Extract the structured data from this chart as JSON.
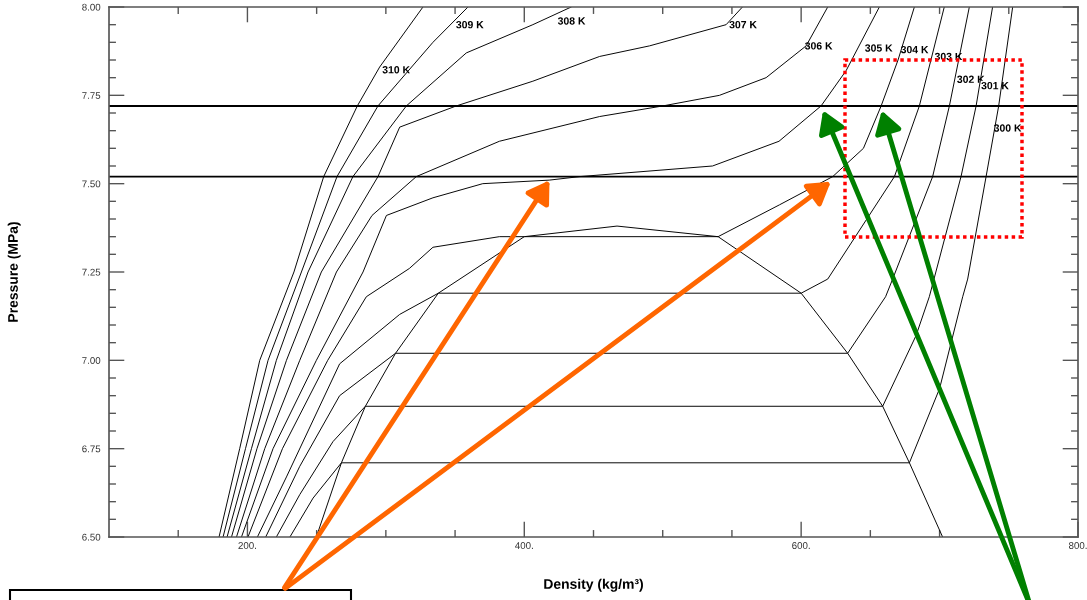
{
  "chart_data": {
    "type": "line",
    "xlabel": "Density (kg/m³)",
    "ylabel": "Pressure (MPa)",
    "xlim": [
      100,
      800
    ],
    "ylim": [
      6.5,
      8.0
    ],
    "xticks": [
      {
        "value": 150,
        "label": null
      },
      {
        "value": 200,
        "label": "200."
      },
      {
        "value": 250,
        "label": null
      },
      {
        "value": 300,
        "label": null
      },
      {
        "value": 350,
        "label": null
      },
      {
        "value": 400,
        "label": "400."
      },
      {
        "value": 450,
        "label": null
      },
      {
        "value": 500,
        "label": null
      },
      {
        "value": 550,
        "label": null
      },
      {
        "value": 600,
        "label": "600."
      },
      {
        "value": 650,
        "label": null
      },
      {
        "value": 700,
        "label": null
      },
      {
        "value": 750,
        "label": null
      },
      {
        "value": 800,
        "label": "800."
      }
    ],
    "yticks": [
      {
        "value": 6.5,
        "label": "6.50"
      },
      {
        "value": 6.55,
        "label": null
      },
      {
        "value": 6.6,
        "label": null
      },
      {
        "value": 6.65,
        "label": null
      },
      {
        "value": 6.7,
        "label": null
      },
      {
        "value": 6.75,
        "label": "6.75"
      },
      {
        "value": 6.8,
        "label": null
      },
      {
        "value": 6.85,
        "label": null
      },
      {
        "value": 6.9,
        "label": null
      },
      {
        "value": 6.95,
        "label": null
      },
      {
        "value": 7.0,
        "label": "7.00"
      },
      {
        "value": 7.05,
        "label": null
      },
      {
        "value": 7.1,
        "label": null
      },
      {
        "value": 7.15,
        "label": null
      },
      {
        "value": 7.2,
        "label": null
      },
      {
        "value": 7.25,
        "label": "7.25"
      },
      {
        "value": 7.3,
        "label": null
      },
      {
        "value": 7.35,
        "label": null
      },
      {
        "value": 7.4,
        "label": null
      },
      {
        "value": 7.45,
        "label": null
      },
      {
        "value": 7.5,
        "label": "7.50"
      },
      {
        "value": 7.55,
        "label": null
      },
      {
        "value": 7.6,
        "label": null
      },
      {
        "value": 7.65,
        "label": null
      },
      {
        "value": 7.7,
        "label": null
      },
      {
        "value": 7.75,
        "label": "7.75"
      },
      {
        "value": 7.8,
        "label": null
      },
      {
        "value": 7.85,
        "label": null
      },
      {
        "value": 7.9,
        "label": null
      },
      {
        "value": 7.95,
        "label": null
      },
      {
        "value": 8.0,
        "label": "8.00"
      }
    ],
    "line_style": "solid",
    "series": [
      {
        "name": "310 K",
        "color": "#000000",
        "x": [
          179.5,
          194.4,
          208.9,
          233.6,
          255.1,
          279.4,
          295.5,
          326.8
        ],
        "values": [
          6.5,
          6.75,
          7.0,
          7.25,
          7.52,
          7.72,
          7.83,
          8.0
        ]
      },
      {
        "name": "309 K",
        "color": "#000000",
        "x": [
          182.4,
          198.6,
          214.9,
          239,
          264.7,
          294.3,
          334,
          359.3
        ],
        "values": [
          6.5,
          6.75,
          7.0,
          7.25,
          7.52,
          7.72,
          7.9,
          8.0
        ]
      },
      {
        "name": "308 K",
        "color": "#000000",
        "x": [
          185.3,
          202.9,
          220.9,
          243.8,
          276.2,
          314.8,
          358.1,
          406.2,
          433.9
        ],
        "values": [
          6.5,
          6.75,
          7.0,
          7.25,
          7.52,
          7.72,
          7.87,
          7.95,
          8.0
        ]
      },
      {
        "name": "307 K",
        "color": "#000000",
        "x": [
          188.5,
          206.9,
          228.2,
          253.4,
          294.3,
          310,
          350.9,
          406.2,
          454.4,
          490.5,
          545.8,
          557.6
        ],
        "values": [
          6.5,
          6.75,
          7.0,
          7.25,
          7.52,
          7.66,
          7.72,
          7.79,
          7.86,
          7.89,
          7.95,
          8.0
        ]
      },
      {
        "name": "306 K",
        "color": "#000000",
        "x": [
          192.1,
          212.5,
          237.8,
          264.3,
          290,
          322,
          382,
          454.4,
          500.1,
          541,
          574.7,
          603.6,
          619.2
        ],
        "values": [
          6.5,
          6.75,
          7.0,
          7.25,
          7.41,
          7.52,
          7.62,
          7.69,
          7.72,
          7.75,
          7.8,
          7.89,
          8.0
        ]
      },
      {
        "name": "305 K",
        "color": "#000000",
        "x": [
          195.7,
          218.5,
          249.8,
          283.5,
          300.4,
          334,
          370,
          418,
          440,
          536,
          584,
          614.4,
          632.5,
          656.5
        ],
        "values": [
          6.5,
          6.75,
          7.0,
          7.25,
          7.41,
          7.46,
          7.5,
          7.51,
          7.52,
          7.55,
          7.62,
          7.72,
          7.82,
          8.0
        ]
      },
      {
        "name": "304 K",
        "color": "#000000",
        "x": [
          200.4,
          225.3,
          258,
          285.9,
          317,
          334,
          382,
          400,
          540,
          584.3,
          622.8,
          645,
          657.8,
          670,
          681.8
        ],
        "values": [
          6.5,
          6.75,
          7.0,
          7.18,
          7.26,
          7.32,
          7.35,
          7.35,
          7.35,
          7.44,
          7.52,
          7.6,
          7.72,
          7.85,
          8.0
        ]
      },
      {
        "name": "303 K",
        "color": "#000000",
        "x": [
          207.2,
          228.2,
          266.6,
          310,
          337.9,
          600,
          619.2,
          667.4,
          685.4,
          703.4
        ],
        "values": [
          6.5,
          6.67,
          6.99,
          7.13,
          7.19,
          7.19,
          7.23,
          7.52,
          7.72,
          8.0
        ]
      },
      {
        "name": "302 K",
        "color": "#000000",
        "x": [
          213.2,
          237.8,
          266.6,
          307,
          633.6,
          661,
          666.1,
          695,
          707.1,
          721.5
        ],
        "values": [
          6.5,
          6.7,
          6.9,
          7.02,
          7.02,
          7.18,
          7.23,
          7.52,
          7.72,
          8.0
        ]
      },
      {
        "name": "301 K",
        "color": "#000000",
        "x": [
          220.9,
          237.8,
          261.8,
          285.2,
          658.9,
          683,
          692.6,
          715.5,
          726.4,
          738.3
        ],
        "values": [
          6.5,
          6.62,
          6.77,
          6.87,
          6.87,
          7.07,
          7.18,
          7.52,
          7.72,
          8.0
        ]
      },
      {
        "name": "300 K",
        "color": "#000000",
        "x": [
          230.7,
          247.4,
          267.9,
          678.2,
          700,
          716.7,
          720.3,
          733.6,
          742.7,
          752.8
        ],
        "values": [
          6.5,
          6.61,
          6.71,
          6.71,
          6.92,
          7.18,
          7.23,
          7.52,
          7.72,
          8.0
        ]
      },
      {
        "color": "#000000",
        "x": [
          249.8,
          267.9,
          285.2,
          307,
          337.9,
          400,
          467,
          540,
          600,
          633.6,
          658.9,
          678.2,
          702.2
        ],
        "values": [
          6.5,
          6.71,
          6.87,
          7.02,
          7.19,
          7.35,
          7.38,
          7.35,
          7.19,
          7.02,
          6.87,
          6.71,
          6.5
        ]
      }
    ],
    "ref_lines": [
      {
        "axis": "y",
        "value": 7.72,
        "color": "#000000"
      },
      {
        "axis": "y",
        "value": 7.52,
        "color": "#000000"
      }
    ]
  }
}
